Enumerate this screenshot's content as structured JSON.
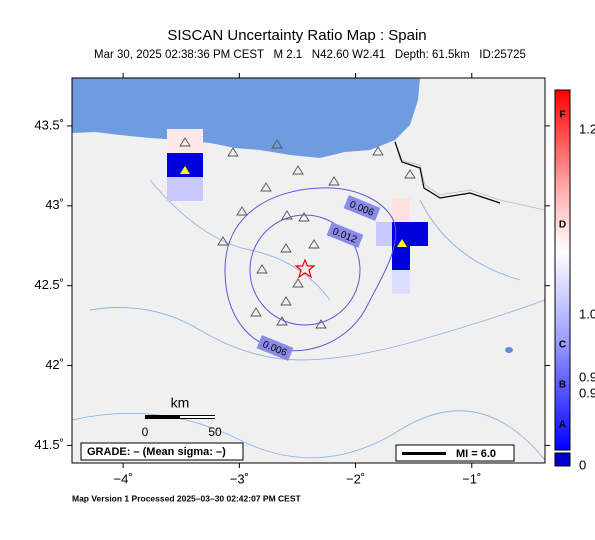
{
  "title": "SISCAN Uncertainty Ratio Map : Spain",
  "subtitle": "Mar 30, 2025 02:38:36 PM CEST   M 2.1   N42.60 W2.41   Depth: 61.5km   ID:25725",
  "map": {
    "xlim": [
      -4.44,
      -0.37
    ],
    "ylim": [
      41.39,
      43.8
    ],
    "xticks": [
      {
        "value": -4,
        "label": "−4˚"
      },
      {
        "value": -3,
        "label": "−3˚"
      },
      {
        "value": -2,
        "label": "−2˚"
      },
      {
        "value": -1,
        "label": "−1˚"
      }
    ],
    "yticks": [
      {
        "value": 43.5,
        "label": "43.5˚"
      },
      {
        "value": 43,
        "label": "43˚"
      },
      {
        "value": 42.5,
        "label": "42.5˚"
      },
      {
        "value": 42,
        "label": "42˚"
      },
      {
        "value": 41.5,
        "label": "41.5˚"
      }
    ]
  },
  "contour_labels": [
    "0.006",
    "0.012",
    "0.006"
  ],
  "scale": {
    "unit": "km",
    "ticks": [
      "0",
      "50"
    ]
  },
  "grade": "GRADE: – (Mean sigma: –)",
  "legend_mi": "MI = 6.0",
  "footer": "Map Version 1 Processed 2025–03–30 02:42:07 PM CEST",
  "colorbar": {
    "letters": [
      "F",
      "D",
      "C",
      "B",
      "A"
    ],
    "values": [
      "1.2",
      "1.0",
      "0.9",
      "0.9",
      "0"
    ]
  }
}
